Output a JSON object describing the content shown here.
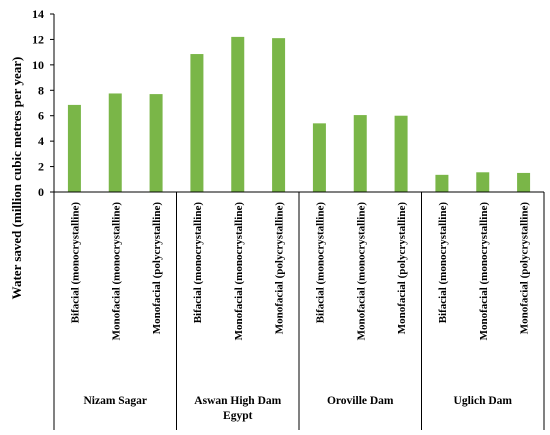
{
  "chart_data": {
    "type": "bar",
    "ylabel": "Water saved (million cubic metres per year)",
    "ylim": [
      0,
      14
    ],
    "yticks": [
      0,
      2,
      4,
      6,
      8,
      10,
      12,
      14
    ],
    "grid": false,
    "bar_color": "#7ab648",
    "groups": [
      {
        "name_lines": [
          "Nizam Sagar"
        ],
        "categories": [
          "Bifacial (monocrystalline)",
          "Monofacial (monocrystalline)",
          "Monofacial (polycrystalline)"
        ],
        "values": [
          6.85,
          7.75,
          7.7
        ]
      },
      {
        "name_lines": [
          "Aswan High Dam",
          "Egypt"
        ],
        "categories": [
          "Bifacial (monocrystalline)",
          "Monofacial (monocrystalline)",
          "Monofacial (polycrystalline)"
        ],
        "values": [
          10.85,
          12.2,
          12.1
        ]
      },
      {
        "name_lines": [
          "Oroville Dam"
        ],
        "categories": [
          "Bifacial (monocrystalline)",
          "Monofacial (monocrystalline)",
          "Monofacial (polycrystalline)"
        ],
        "values": [
          5.4,
          6.05,
          6.0
        ]
      },
      {
        "name_lines": [
          "Uglich Dam"
        ],
        "categories": [
          "Bifacial (monocrystalline)",
          "Monofacial (monocrystalline)",
          "Monofacial (polycrystalline)"
        ],
        "values": [
          1.35,
          1.55,
          1.5
        ]
      }
    ]
  }
}
